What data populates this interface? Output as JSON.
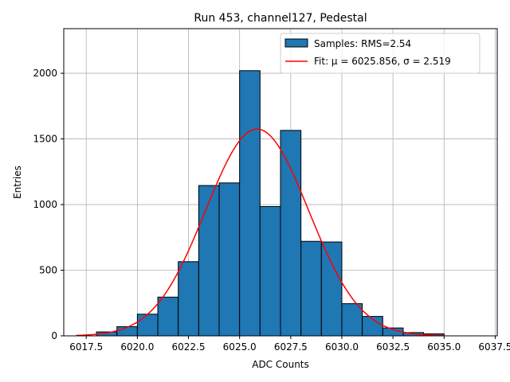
{
  "chart_data": {
    "type": "bar",
    "title": "Run 453, channel127, Pedestal",
    "xlabel": "ADC Counts",
    "ylabel": "Entries",
    "xlim": [
      6016.4,
      6037.6
    ],
    "ylim": [
      0,
      2340
    ],
    "xticks": [
      6017.5,
      6020.0,
      6022.5,
      6025.0,
      6027.5,
      6030.0,
      6032.5,
      6035.0,
      6037.5
    ],
    "xtick_labels": [
      "6017.5",
      "6020.0",
      "6022.5",
      "6025.0",
      "6027.5",
      "6030.0",
      "6032.5",
      "6035.0",
      "6037.5"
    ],
    "yticks": [
      0,
      500,
      1000,
      1500,
      2000
    ],
    "ytick_labels": [
      "0",
      "500",
      "1000",
      "1500",
      "2000"
    ],
    "grid": true,
    "legend_position": "top-right",
    "histogram": {
      "name": "Samples: RMS=2.54",
      "color": "#1f77b4",
      "edge_color": "#000000",
      "bin_edges": [
        6018,
        6019,
        6020,
        6021,
        6022,
        6023,
        6024,
        6025,
        6026,
        6027,
        6028,
        6029,
        6030,
        6031,
        6032,
        6033,
        6034,
        6035
      ],
      "counts": [
        30,
        70,
        165,
        295,
        565,
        1145,
        1165,
        2020,
        985,
        1565,
        720,
        715,
        245,
        148,
        60,
        25,
        15
      ]
    },
    "fit": {
      "name": "Fit: μ = 6025.856, σ = 2.519",
      "color": "#ff0000",
      "mu": 6025.856,
      "sigma": 2.519,
      "amplitude": 1575,
      "x_range": [
        6017,
        6035
      ]
    }
  }
}
